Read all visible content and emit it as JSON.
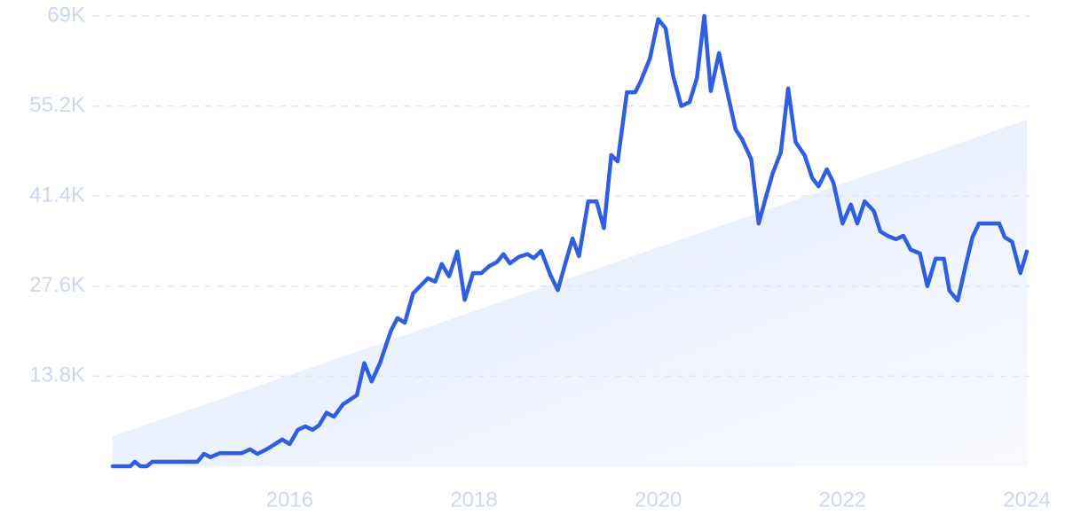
{
  "chart_data": {
    "type": "line",
    "color": "#2f5fe0",
    "grid": true,
    "xlim": [
      2014.08,
      2024.0
    ],
    "ylim": [
      0,
      69
    ],
    "xticks": [
      2016,
      2018,
      2020,
      2022,
      2024
    ],
    "yticks": [
      {
        "value": 13.8,
        "label": "13.8K"
      },
      {
        "value": 27.6,
        "label": "27.6K"
      },
      {
        "value": 41.4,
        "label": "41.4K"
      },
      {
        "value": 55.2,
        "label": "55.2K"
      },
      {
        "value": 69,
        "label": "69K"
      }
    ],
    "trend": {
      "x": [
        2014.08,
        2024.0
      ],
      "values": [
        4.6,
        53.1
      ]
    },
    "x": [
      2014.08,
      2014.27,
      2014.32,
      2014.38,
      2014.45,
      2014.51,
      2015.0,
      2015.07,
      2015.14,
      2015.24,
      2015.48,
      2015.57,
      2015.65,
      2015.75,
      2015.92,
      2016.0,
      2016.09,
      2016.17,
      2016.25,
      2016.32,
      2016.4,
      2016.48,
      2016.58,
      2016.73,
      2016.81,
      2016.89,
      2016.98,
      2017.1,
      2017.17,
      2017.25,
      2017.34,
      2017.5,
      2017.58,
      2017.65,
      2017.73,
      2017.82,
      2017.9,
      2017.99,
      2018.08,
      2018.17,
      2018.25,
      2018.32,
      2018.39,
      2018.49,
      2018.58,
      2018.65,
      2018.73,
      2018.83,
      2018.91,
      2018.99,
      2019.07,
      2019.14,
      2019.24,
      2019.33,
      2019.41,
      2019.49,
      2019.56,
      2019.66,
      2019.75,
      2019.81,
      2019.91,
      2020.0,
      2020.08,
      2020.16,
      2020.25,
      2020.34,
      2020.42,
      2020.5,
      2020.57,
      2020.66,
      2020.74,
      2020.84,
      2020.91,
      2021.01,
      2021.09,
      2021.16,
      2021.24,
      2021.33,
      2021.41,
      2021.49,
      2021.59,
      2021.67,
      2021.74,
      2021.83,
      2021.9,
      2022.0,
      2022.09,
      2022.16,
      2022.24,
      2022.34,
      2022.41,
      2022.49,
      2022.58,
      2022.66,
      2022.74,
      2022.84,
      2022.92,
      2023.01,
      2023.1,
      2023.16,
      2023.25,
      2023.34,
      2023.41,
      2023.48,
      2023.7,
      2023.76,
      2023.84,
      2023.93,
      2024.0
    ],
    "values": [
      0,
      0,
      0.7,
      0,
      0,
      0.7,
      0.7,
      1.9,
      1.4,
      2.0,
      2.0,
      2.6,
      1.9,
      2.6,
      4.1,
      3.4,
      5.6,
      6.1,
      5.6,
      6.3,
      8.2,
      7.6,
      9.5,
      10.9,
      15.8,
      13.0,
      15.8,
      20.8,
      22.7,
      22.0,
      26.5,
      28.8,
      28.3,
      31.0,
      29.1,
      32.9,
      25.5,
      29.6,
      29.6,
      30.7,
      31.3,
      32.5,
      31.1,
      32.1,
      32.5,
      31.9,
      33.0,
      29.3,
      27.0,
      31.0,
      34.9,
      32.2,
      40.6,
      40.6,
      36.5,
      47.7,
      46.7,
      57.3,
      57.3,
      59.0,
      62.5,
      68.5,
      67.1,
      59.9,
      55.2,
      55.8,
      59.5,
      69.0,
      57.5,
      63.3,
      57.9,
      51.6,
      50.1,
      47.0,
      37.2,
      40.8,
      44.8,
      48.1,
      57.9,
      49.7,
      47.6,
      44.2,
      42.9,
      45.5,
      43.5,
      37.2,
      40.1,
      37.2,
      40.6,
      39.1,
      36.0,
      35.3,
      34.8,
      35.3,
      33.2,
      32.6,
      27.6,
      31.8,
      31.8,
      26.9,
      25.4,
      31.0,
      35.1,
      37.2,
      37.2,
      35.1,
      34.4,
      29.6,
      32.9
    ]
  }
}
